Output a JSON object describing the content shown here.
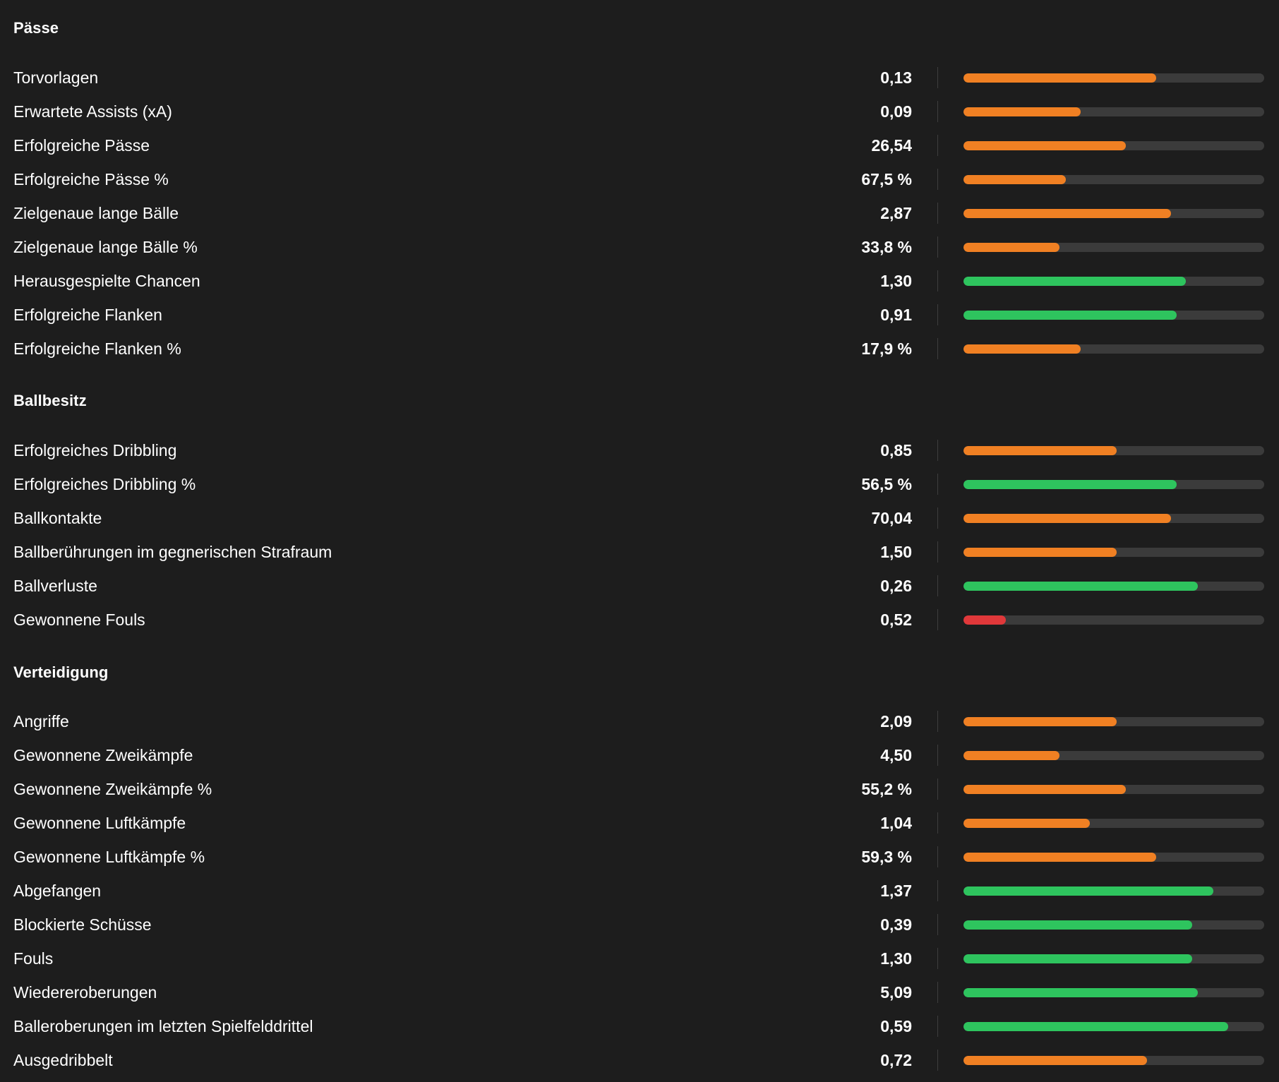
{
  "colors": {
    "background": "#1d1d1d",
    "track": "#3b3b3b",
    "orange": "#f08023",
    "green": "#2ec45e",
    "red": "#e0383a"
  },
  "sections": [
    {
      "title": "Pässe",
      "rows": [
        {
          "label": "Torvorlagen",
          "value": "0,13",
          "percentile": 0.64,
          "color": "orange"
        },
        {
          "label": "Erwartete Assists (xA)",
          "value": "0,09",
          "percentile": 0.39,
          "color": "orange"
        },
        {
          "label": "Erfolgreiche Pässe",
          "value": "26,54",
          "percentile": 0.54,
          "color": "orange"
        },
        {
          "label": "Erfolgreiche Pässe %",
          "value": "67,5 %",
          "percentile": 0.34,
          "color": "orange"
        },
        {
          "label": "Zielgenaue lange Bälle",
          "value": "2,87",
          "percentile": 0.69,
          "color": "orange"
        },
        {
          "label": "Zielgenaue lange Bälle %",
          "value": "33,8 %",
          "percentile": 0.32,
          "color": "orange"
        },
        {
          "label": "Herausgespielte Chancen",
          "value": "1,30",
          "percentile": 0.74,
          "color": "green"
        },
        {
          "label": "Erfolgreiche Flanken",
          "value": "0,91",
          "percentile": 0.71,
          "color": "green"
        },
        {
          "label": "Erfolgreiche Flanken %",
          "value": "17,9 %",
          "percentile": 0.39,
          "color": "orange"
        }
      ]
    },
    {
      "title": "Ballbesitz",
      "rows": [
        {
          "label": "Erfolgreiches Dribbling",
          "value": "0,85",
          "percentile": 0.51,
          "color": "orange"
        },
        {
          "label": "Erfolgreiches Dribbling %",
          "value": "56,5 %",
          "percentile": 0.71,
          "color": "green"
        },
        {
          "label": "Ballkontakte",
          "value": "70,04",
          "percentile": 0.69,
          "color": "orange"
        },
        {
          "label": "Ballberührungen im gegnerischen Strafraum",
          "value": "1,50",
          "percentile": 0.51,
          "color": "orange"
        },
        {
          "label": "Ballverluste",
          "value": "0,26",
          "percentile": 0.78,
          "color": "green"
        },
        {
          "label": "Gewonnene Fouls",
          "value": "0,52",
          "percentile": 0.14,
          "color": "red"
        }
      ]
    },
    {
      "title": "Verteidigung",
      "rows": [
        {
          "label": "Angriffe",
          "value": "2,09",
          "percentile": 0.51,
          "color": "orange"
        },
        {
          "label": "Gewonnene Zweikämpfe",
          "value": "4,50",
          "percentile": 0.32,
          "color": "orange"
        },
        {
          "label": "Gewonnene Zweikämpfe %",
          "value": "55,2 %",
          "percentile": 0.54,
          "color": "orange"
        },
        {
          "label": "Gewonnene Luftkämpfe",
          "value": "1,04",
          "percentile": 0.42,
          "color": "orange"
        },
        {
          "label": "Gewonnene Luftkämpfe %",
          "value": "59,3 %",
          "percentile": 0.64,
          "color": "orange"
        },
        {
          "label": "Abgefangen",
          "value": "1,37",
          "percentile": 0.83,
          "color": "green"
        },
        {
          "label": "Blockierte Schüsse",
          "value": "0,39",
          "percentile": 0.76,
          "color": "green"
        },
        {
          "label": "Fouls",
          "value": "1,30",
          "percentile": 0.76,
          "color": "green"
        },
        {
          "label": "Wiedereroberungen",
          "value": "5,09",
          "percentile": 0.78,
          "color": "green"
        },
        {
          "label": "Balleroberungen im letzten Spielfelddrittel",
          "value": "0,59",
          "percentile": 0.88,
          "color": "green"
        },
        {
          "label": "Ausgedribbelt",
          "value": "0,72",
          "percentile": 0.61,
          "color": "orange"
        }
      ]
    }
  ]
}
